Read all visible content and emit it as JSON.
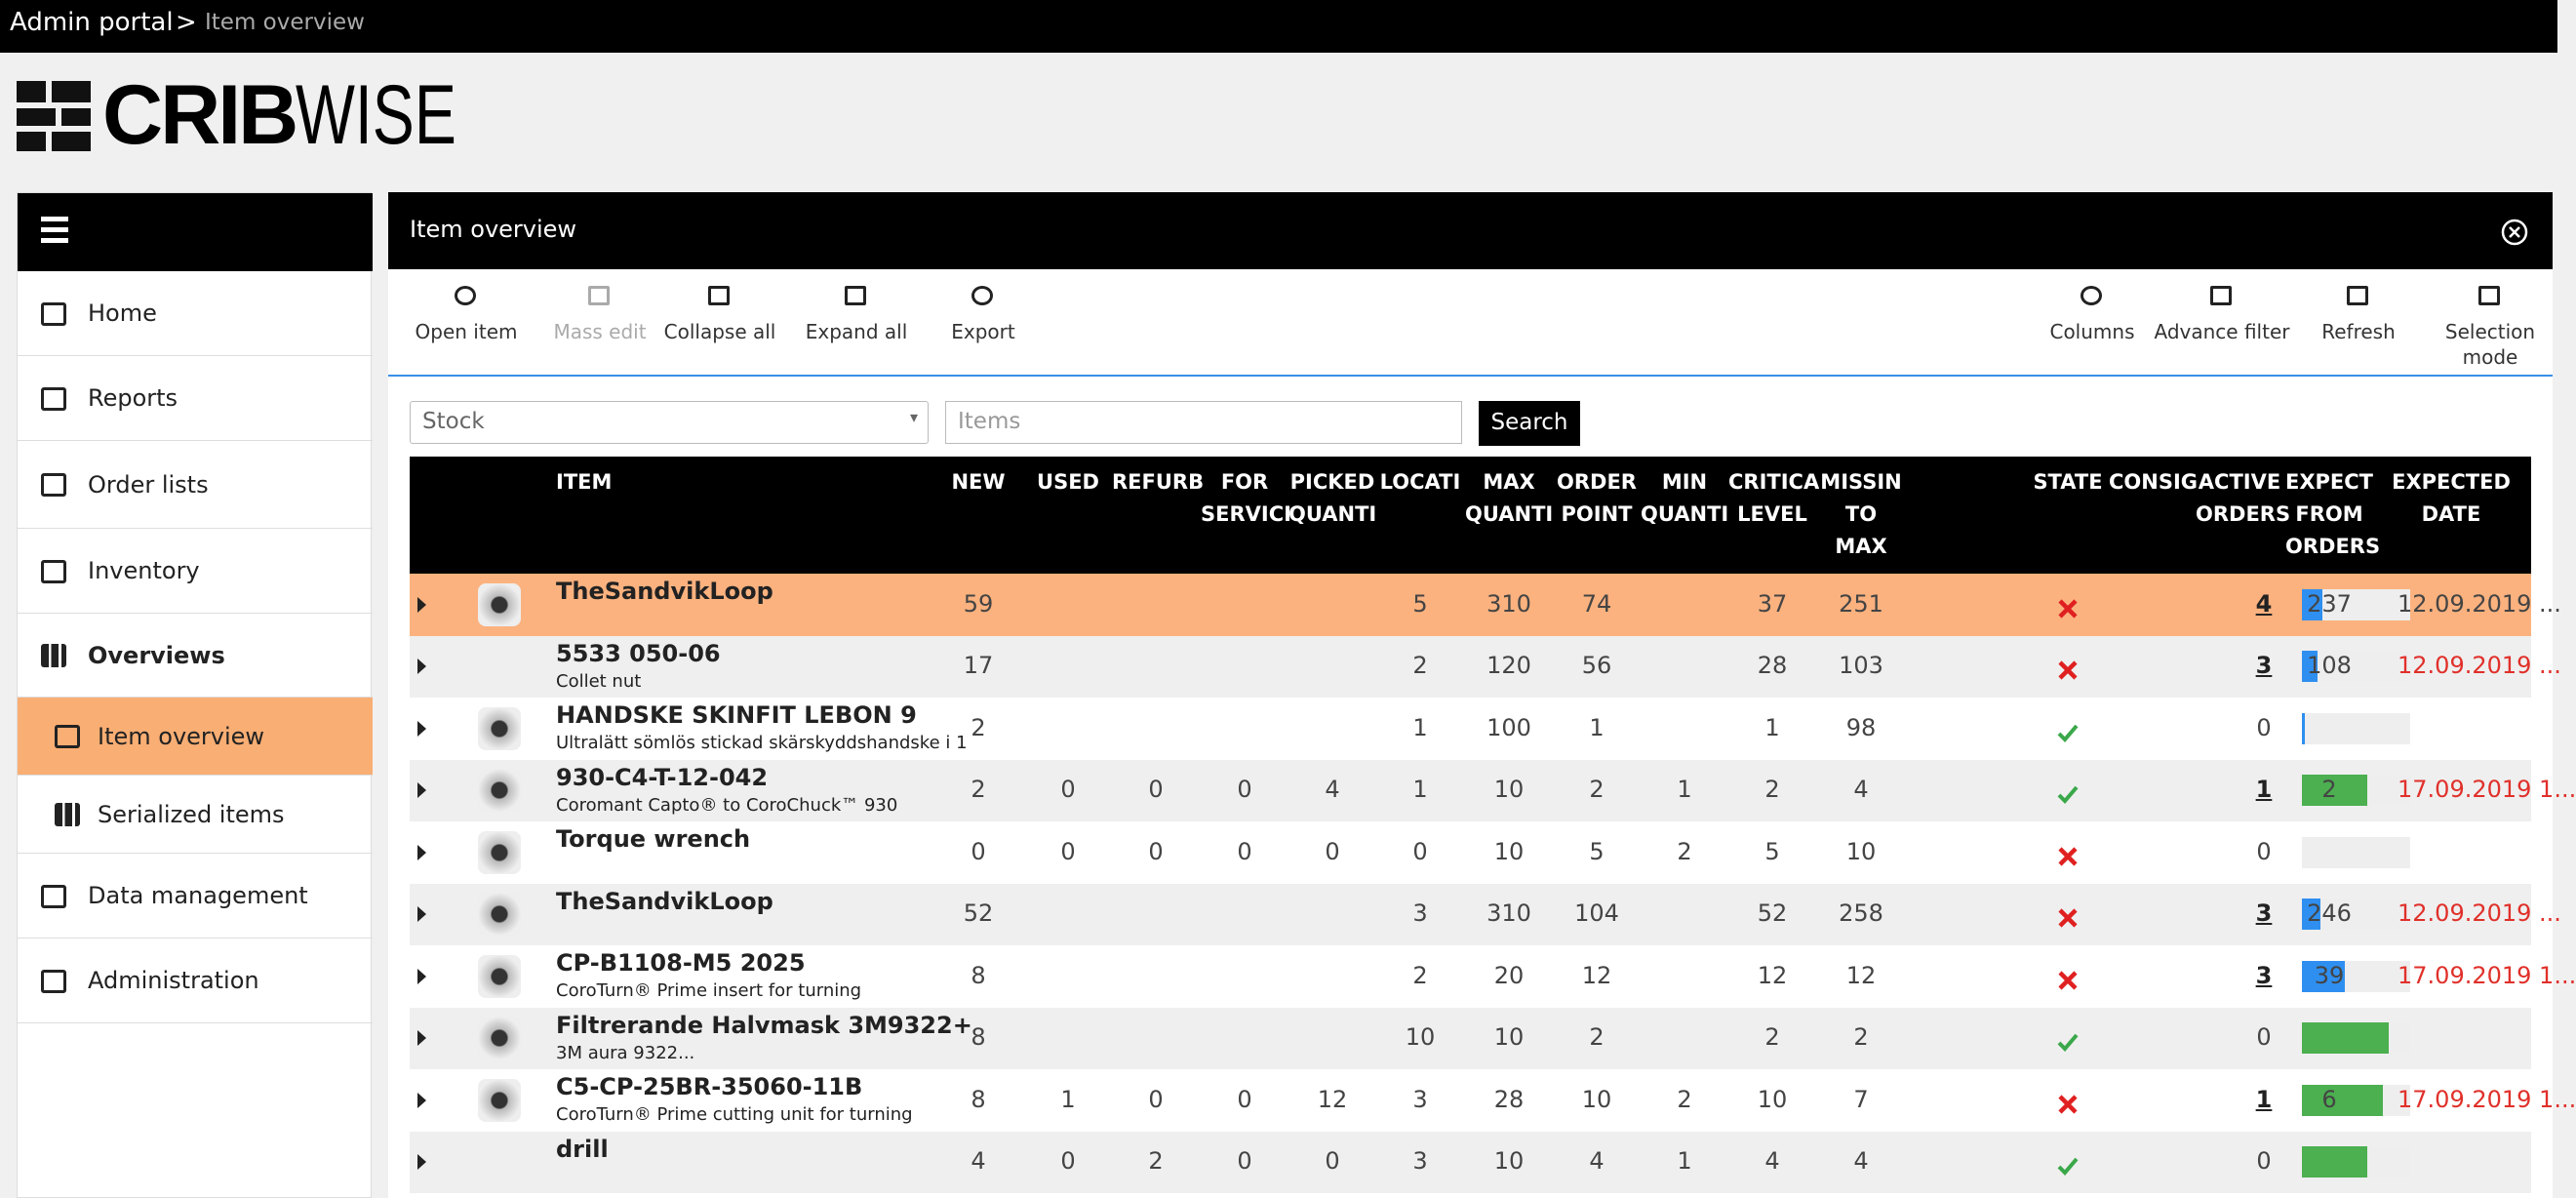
{
  "breadcrumb": {
    "root": "Admin portal",
    "separator": ">",
    "current": "Item overview"
  },
  "logo": {
    "bold": "CRIB",
    "light": "WISE"
  },
  "sidebar": {
    "items": [
      "Home",
      "Reports",
      "Order lists",
      "Inventory",
      "Overviews",
      "Item overview",
      "Serialized items",
      "Data management",
      "Administration"
    ]
  },
  "panel": {
    "title": "Item overview"
  },
  "toolbar": {
    "left": [
      "Open item",
      "Mass edit",
      "Collapse all",
      "Expand all",
      "Export"
    ],
    "right": [
      "Columns",
      "Advance filter",
      "Refresh",
      "Selection mode"
    ]
  },
  "filters": {
    "select": "Stock",
    "input_placeholder": "Items",
    "button": "Search"
  },
  "table": {
    "headers": [
      [
        "ITEM"
      ],
      [
        "NEW"
      ],
      [
        "USED"
      ],
      [
        "REFURB"
      ],
      [
        "FOR",
        "SERVICI"
      ],
      [
        "PICKED",
        "QUANTI"
      ],
      [
        "LOCATI"
      ],
      [
        "MAX",
        "QUANTI"
      ],
      [
        "ORDER",
        "POINT"
      ],
      [
        "MIN",
        "QUANTI"
      ],
      [
        "CRITICA",
        "LEVEL"
      ],
      [
        "MISSIN",
        "TO",
        "MAX"
      ],
      [
        "STATE"
      ],
      [
        "CONSIG"
      ],
      [
        "ACTIVE",
        "ORDERS"
      ],
      [
        "EXPECT",
        "FROM",
        "ORDERS"
      ],
      [
        "EXPECTED",
        "DATE"
      ]
    ],
    "rows": [
      {
        "name": "TheSandvikLoop",
        "desc": null,
        "cells": [
          59,
          null,
          null,
          null,
          null,
          5,
          310,
          74,
          null,
          37,
          251
        ],
        "fill": 19,
        "state": "error",
        "active": 4,
        "expect": 237,
        "date": "12.09.2019 ...",
        "selected": true,
        "image": true
      },
      {
        "name": "5533 050-06",
        "desc": "Collet nut",
        "cells": [
          17,
          null,
          null,
          null,
          null,
          2,
          120,
          56,
          null,
          28,
          103
        ],
        "fill": 14,
        "state": "error",
        "active": 3,
        "expect": 108,
        "date": "12.09.2019 ...",
        "selected": false,
        "image": false
      },
      {
        "name": "HANDSKE SKINFIT LEBON 9",
        "desc": "Ultralätt sömlös stickad skärskyddshandske i 1",
        "cells": [
          2,
          null,
          null,
          null,
          null,
          1,
          100,
          1,
          null,
          1,
          98
        ],
        "fill": 2,
        "state": "ok",
        "active": 0,
        "expect": null,
        "date": null,
        "selected": false,
        "image": true
      },
      {
        "name": "930-C4-T-12-042",
        "desc": "Coromant Capto® to CoroChuck™ 930",
        "cells": [
          2,
          0,
          0,
          0,
          4,
          1,
          10,
          2,
          1,
          2,
          4
        ],
        "fill": 60,
        "state": "ok",
        "active": 1,
        "expect": 2,
        "date": "17.09.2019 1...",
        "selected": false,
        "image": true
      },
      {
        "name": "Torque wrench",
        "desc": null,
        "cells": [
          0,
          0,
          0,
          0,
          0,
          0,
          10,
          5,
          2,
          5,
          10
        ],
        "fill": 0,
        "state": "error",
        "active": 0,
        "expect": null,
        "date": null,
        "selected": false,
        "image": true
      },
      {
        "name": "TheSandvikLoop",
        "desc": null,
        "cells": [
          52,
          null,
          null,
          null,
          null,
          3,
          310,
          104,
          null,
          52,
          258
        ],
        "fill": 17,
        "state": "error",
        "active": 3,
        "expect": 246,
        "date": "12.09.2019 ...",
        "selected": false,
        "image": true
      },
      {
        "name": "CP-B1108-M5 2025",
        "desc": "CoroTurn® Prime insert for turning",
        "cells": [
          8,
          null,
          null,
          null,
          null,
          2,
          20,
          12,
          null,
          12,
          12
        ],
        "fill": 40,
        "state": "error",
        "active": 3,
        "expect": 39,
        "date": "17.09.2019 1...",
        "selected": false,
        "image": true
      },
      {
        "name": "Filtrerande Halvmask 3M9322+",
        "desc": "3M aura 9322...",
        "cells": [
          8,
          null,
          null,
          null,
          null,
          10,
          10,
          2,
          null,
          2,
          2
        ],
        "fill": 80,
        "state": "ok",
        "active": 0,
        "expect": null,
        "date": null,
        "selected": false,
        "image": true
      },
      {
        "name": "C5-CP-25BR-35060-11B",
        "desc": "CoroTurn® Prime cutting unit for turning",
        "cells": [
          8,
          1,
          0,
          0,
          12,
          3,
          28,
          10,
          2,
          10,
          7
        ],
        "fill": 75,
        "state": "error",
        "active": 1,
        "expect": 6,
        "date": "17.09.2019 1...",
        "selected": false,
        "image": true
      },
      {
        "name": "drill",
        "desc": null,
        "cells": [
          4,
          0,
          2,
          0,
          0,
          3,
          10,
          4,
          1,
          4,
          4
        ],
        "fill": 60,
        "state": "ok",
        "active": 0,
        "expect": null,
        "date": null,
        "selected": false,
        "image": false
      }
    ]
  }
}
